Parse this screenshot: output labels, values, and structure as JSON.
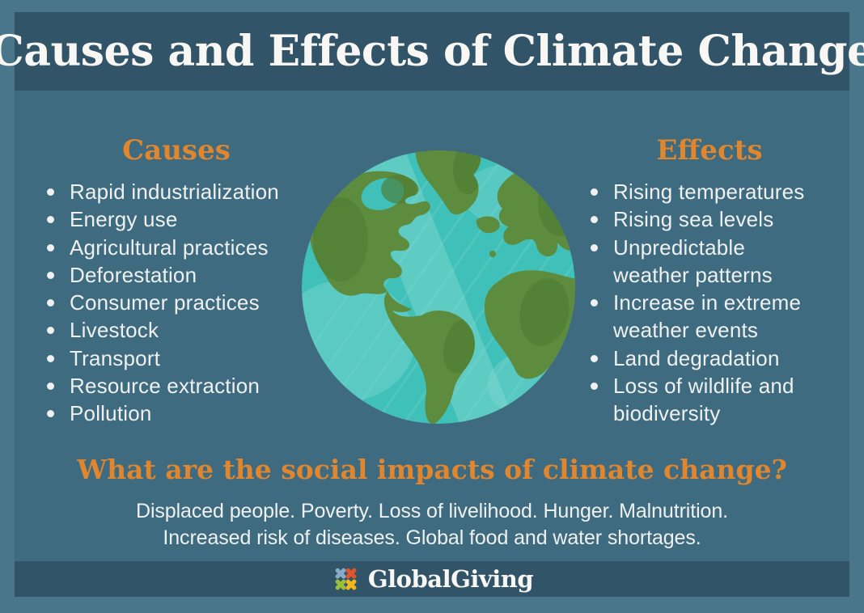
{
  "poster": {
    "title": "Causes and Effects of Climate Change"
  },
  "causes": {
    "heading": "Causes",
    "items": [
      "Rapid industrialization",
      "Energy use",
      "Agricultural practices",
      "Deforestation",
      "Consumer practices",
      "Livestock",
      "Transport",
      "Resource extraction",
      "Pollution"
    ]
  },
  "effects": {
    "heading": "Effects",
    "items": [
      "Rising temperatures",
      "Rising sea levels",
      "Unpredictable\nweather patterns",
      "Increase in extreme\nweather events",
      "Land degradation",
      "Loss of wildlife and\nbiodiversity"
    ]
  },
  "impacts": {
    "heading": "What are the social impacts of climate change?",
    "line1": "Displaced people. Poverty. Loss of livelihood. Hunger. Malnutrition.",
    "line2": "Increased risk of diseases. Global food and water shortages."
  },
  "footer": {
    "brand": "GlobalGiving",
    "logo_icon": "globalgiving-pinwheel-icon"
  },
  "illustration": {
    "name": "earth-globe",
    "description": "Stylized Earth showing the Atlantic: Americas, Greenland, Europe and Africa"
  },
  "colors": {
    "border": "#4a768c",
    "panel": "#315468",
    "bg": "#3f6b80",
    "accent": "#e0862e",
    "text-light": "#eef1ef",
    "title-white": "#f8f7f3",
    "ocean": "#3fc0b9",
    "ocean-light": "#7fd8d0",
    "land": "#5e8c3e",
    "land-dark": "#4e7c34",
    "logo-blue": "#8aabc7",
    "logo-red": "#e0552c",
    "logo-green": "#9cbf3b",
    "logo-yellow": "#f3b71e"
  }
}
